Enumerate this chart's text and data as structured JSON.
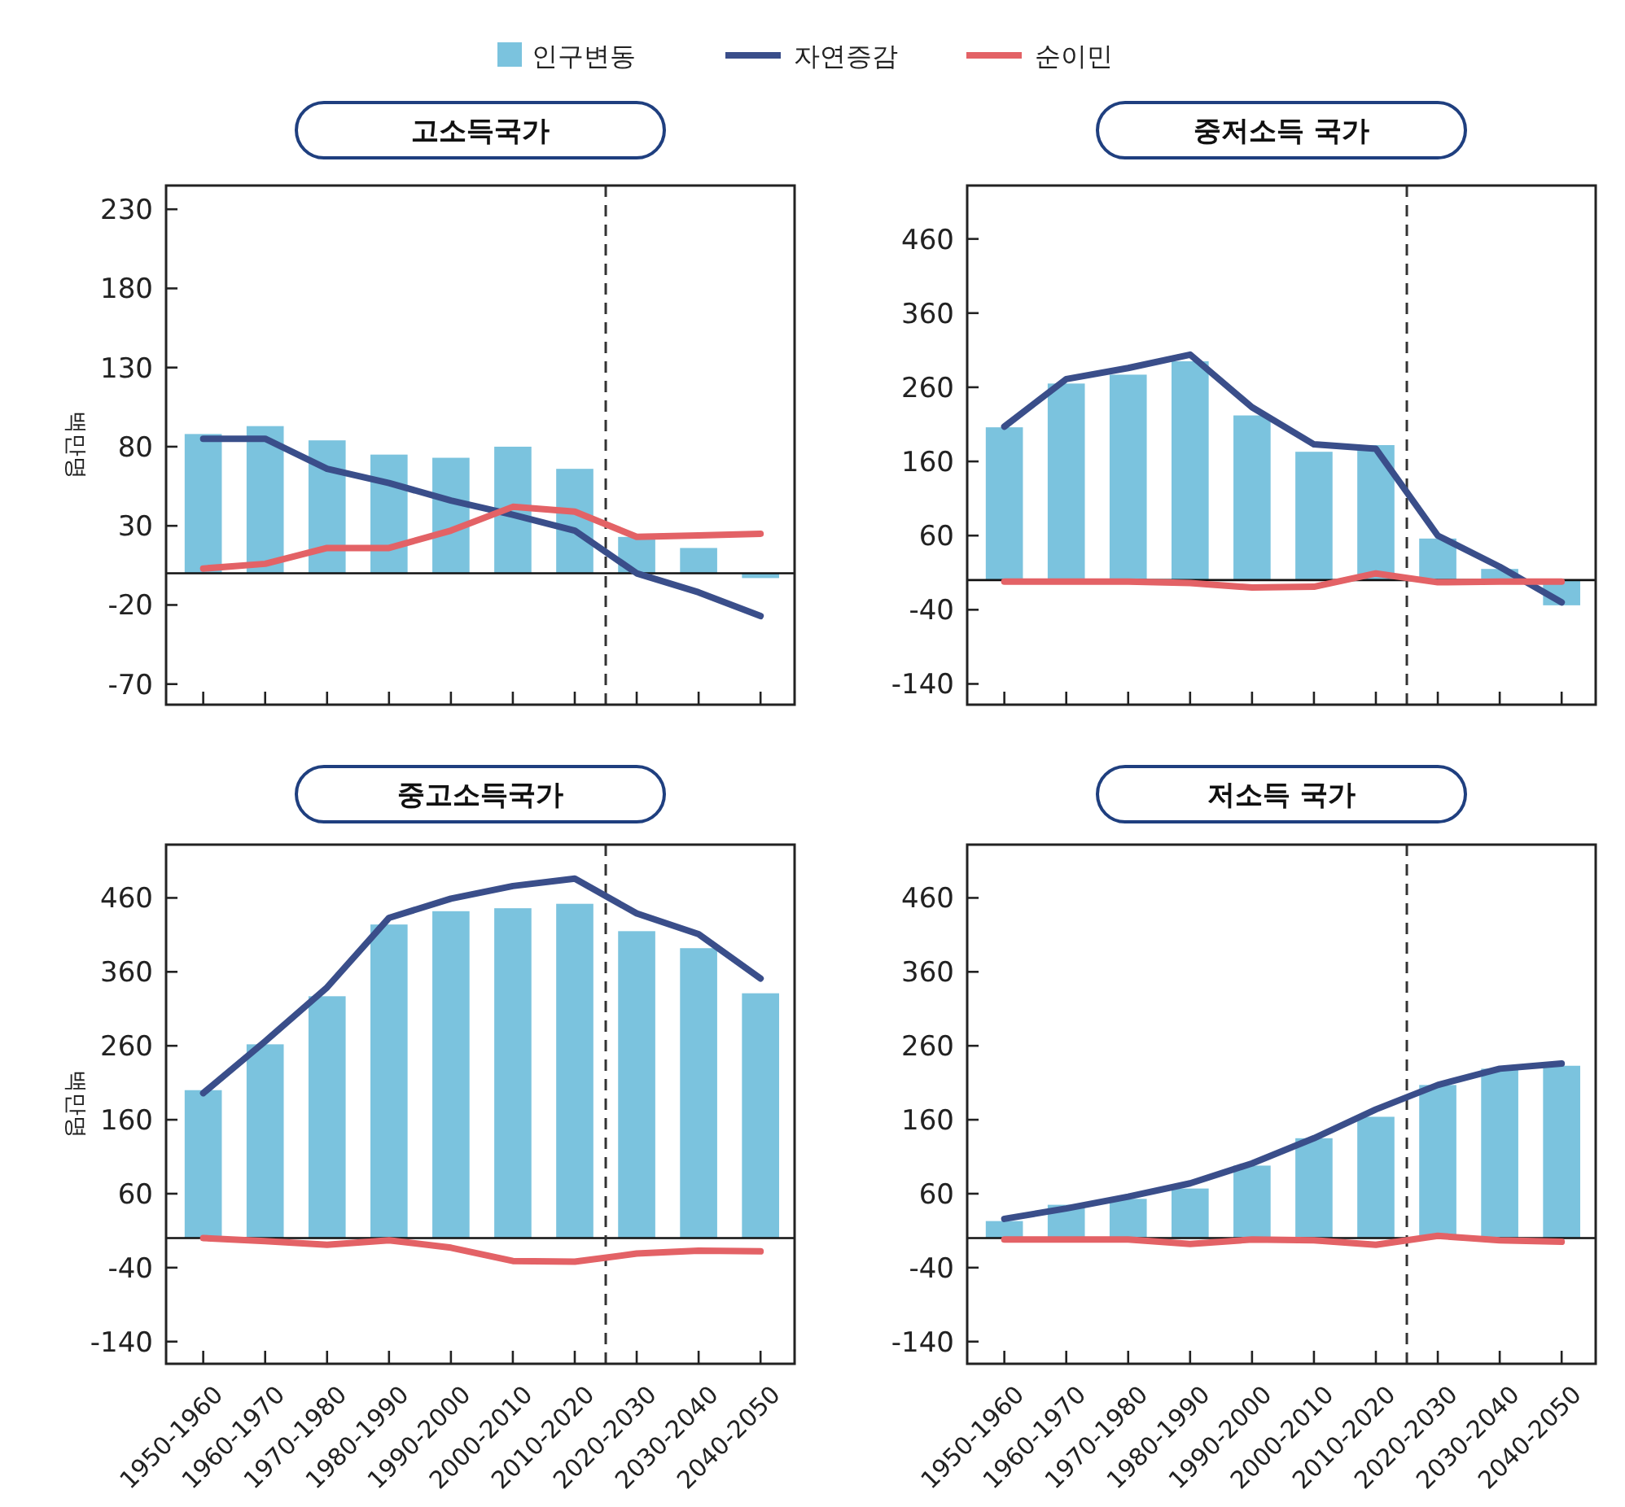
{
  "chart_data": [
    {
      "type": "bar",
      "title": "고소득국가",
      "ylabel": "백만명",
      "legend": "top",
      "tick_labels": "y",
      "categories": [
        null,
        null,
        null,
        null,
        null,
        null,
        null,
        null,
        null,
        null
      ],
      "ylim": [
        -83,
        245
      ],
      "yticks": [
        -70,
        -20,
        30,
        80,
        130,
        180,
        230
      ],
      "series": [
        {
          "name": "인구변동",
          "type": "bar",
          "color": "#7bc3de",
          "values": [
            88,
            93,
            84,
            75,
            73,
            80,
            66,
            23,
            16,
            -3
          ]
        },
        {
          "name": "자연증감",
          "type": "line",
          "color": "#3a4e8a",
          "values": [
            85,
            85,
            66,
            57,
            46,
            37,
            27,
            0,
            -12,
            -27
          ]
        },
        {
          "name": "순이민",
          "type": "line",
          "color": "#e36266",
          "values": [
            3,
            6,
            16,
            16,
            27,
            42,
            39,
            23,
            24,
            25
          ]
        }
      ]
    },
    {
      "type": "bar",
      "title": "중저소득 국가",
      "tick_labels": "y",
      "categories": [
        null,
        null,
        null,
        null,
        null,
        null,
        null,
        null,
        null,
        null
      ],
      "ylim": [
        -168,
        532
      ],
      "yticks": [
        -140,
        -40,
        60,
        160,
        260,
        360,
        460
      ],
      "series": [
        {
          "type": "bar",
          "color": "#7bc3de",
          "values": [
            206,
            265,
            277,
            295,
            222,
            173,
            182,
            56,
            15,
            -34
          ]
        },
        {
          "type": "line",
          "color": "#3a4e8a",
          "values": [
            207,
            271,
            286,
            304,
            233,
            183,
            177,
            60,
            18,
            -30
          ]
        },
        {
          "type": "line",
          "color": "#e36266",
          "values": [
            -2,
            -2,
            -2,
            -4,
            -10,
            -9,
            9,
            -3,
            -2,
            -2
          ]
        }
      ]
    },
    {
      "type": "bar",
      "title": "중고소득국가",
      "ylabel": "백만명",
      "categories": [
        "1950-1960",
        "1960-1970",
        "1970-1980",
        "1980-1990",
        "1990-2000",
        "2000-2010",
        "2010-2020",
        "2020-2030",
        "2030-2040",
        "2040-2050"
      ],
      "ylim": [
        -170,
        532
      ],
      "yticks": [
        -140,
        -40,
        60,
        160,
        260,
        360,
        460
      ],
      "series": [
        {
          "type": "bar",
          "color": "#7bc3de",
          "values": [
            200,
            262,
            327,
            424,
            442,
            446,
            452,
            415,
            392,
            331
          ]
        },
        {
          "type": "line",
          "color": "#3a4e8a",
          "values": [
            196,
            266,
            339,
            433,
            459,
            476,
            486,
            439,
            411,
            351
          ]
        },
        {
          "type": "line",
          "color": "#e36266",
          "values": [
            0,
            -4,
            -9,
            -3,
            -13,
            -31,
            -32,
            -21,
            -17,
            -18
          ]
        }
      ]
    },
    {
      "type": "bar",
      "title": "저소득 국가",
      "categories": [
        "1950-1960",
        "1960-1970",
        "1970-1980",
        "1980-1990",
        "1990-2000",
        "2000-2010",
        "2010-2020",
        "2020-2030",
        "2030-2040",
        "2040-2050"
      ],
      "ylim": [
        -170,
        532
      ],
      "yticks": [
        -140,
        -40,
        60,
        160,
        260,
        360,
        460
      ],
      "series": [
        {
          "type": "bar",
          "color": "#7bc3de",
          "values": [
            23,
            45,
            53,
            67,
            98,
            135,
            164,
            207,
            229,
            233
          ]
        },
        {
          "type": "line",
          "color": "#3a4e8a",
          "values": [
            26,
            40,
            56,
            74,
            101,
            135,
            174,
            207,
            229,
            236
          ]
        },
        {
          "type": "line",
          "color": "#e36266",
          "values": [
            -2,
            -2,
            -2,
            -8,
            -2,
            -3,
            -9,
            3,
            -3,
            -5
          ]
        }
      ]
    }
  ]
}
